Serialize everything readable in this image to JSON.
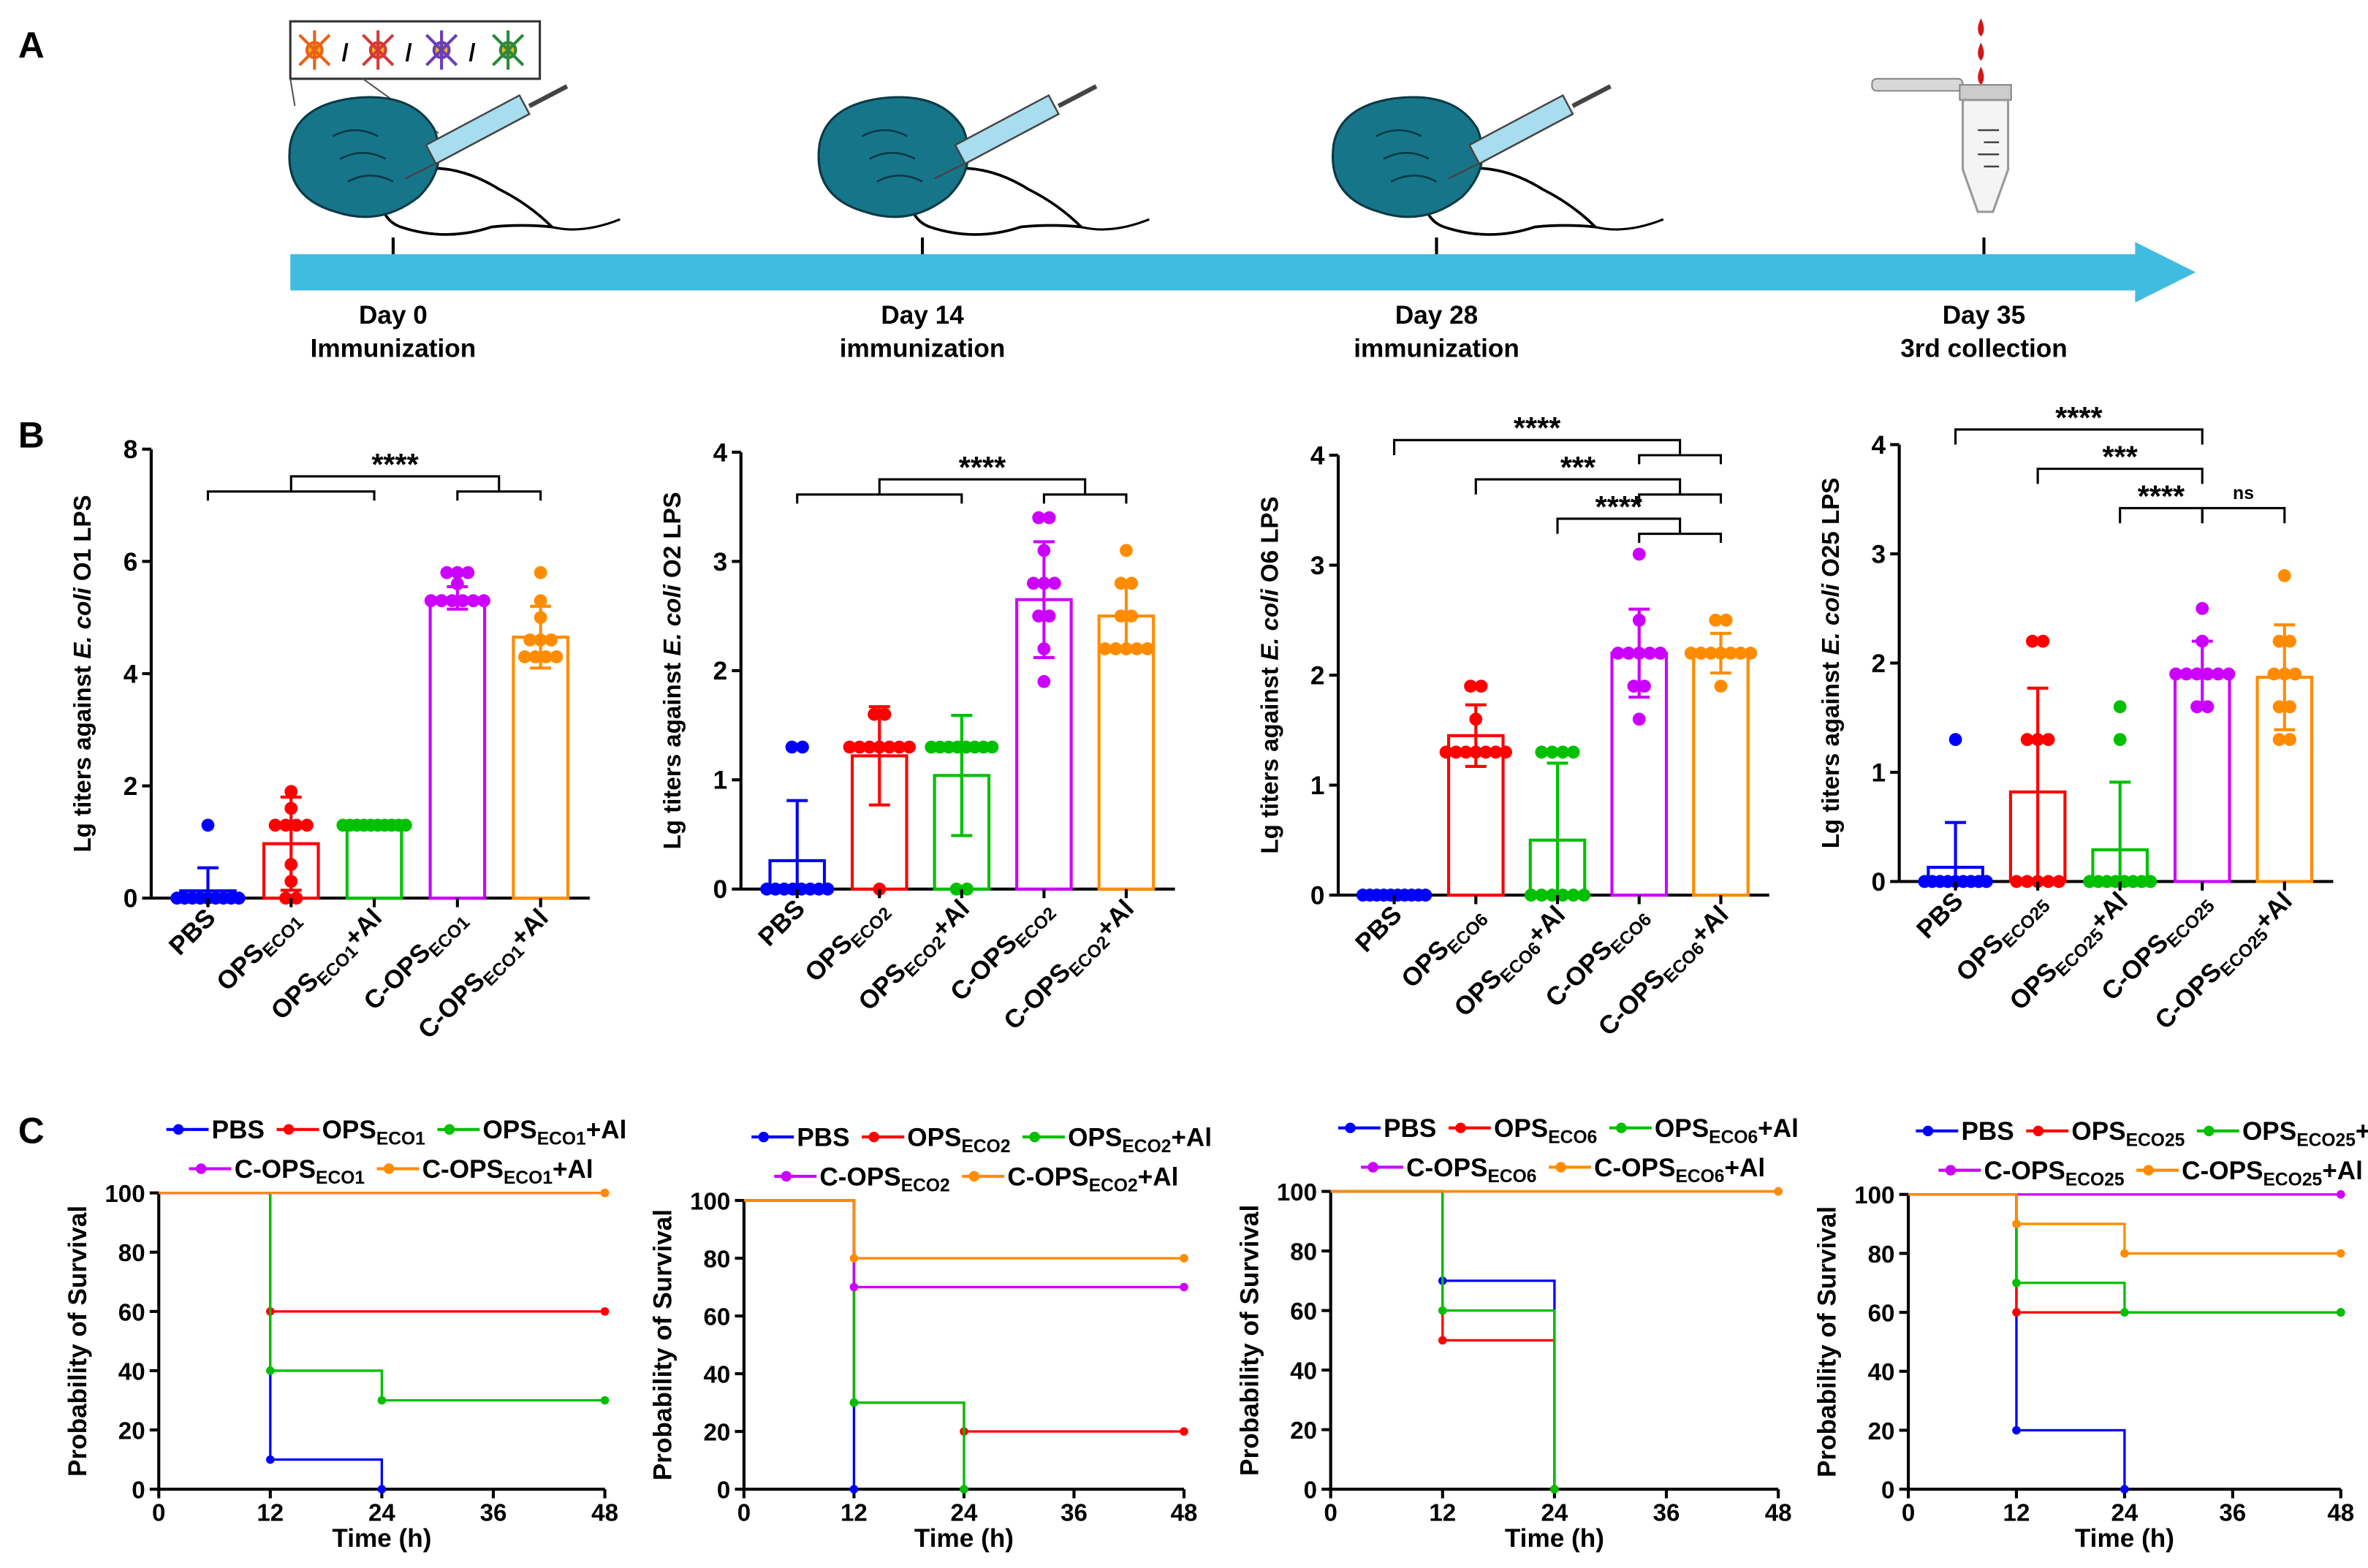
{
  "panel_labels": [
    "A",
    "B",
    "C"
  ],
  "timeline": [
    {
      "day": "Day 0",
      "event": "Immunization"
    },
    {
      "day": "Day 14",
      "event": "immunization"
    },
    {
      "day": "Day 28",
      "event": "immunization"
    },
    {
      "day": "Day 35",
      "event": "3rd collection"
    }
  ],
  "chart_data": [
    {
      "type": "bar",
      "ylabel": [
        "Lg titers against ",
        "E. coli",
        " O1 LPS"
      ],
      "categories": [
        [
          "PBS"
        ],
        [
          "OPS",
          "ECO1"
        ],
        [
          "OPS",
          "ECO1",
          "+Al"
        ],
        [
          "C-OPS",
          "ECO1"
        ],
        [
          "C-OPS",
          "ECO1",
          "+Al"
        ]
      ],
      "colors": [
        "#0000ff",
        "#ff0000",
        "#00c000",
        "#cc00ff",
        "#ff8c00"
      ],
      "values": [
        0.13,
        0.97,
        1.3,
        5.35,
        4.65
      ],
      "errors": [
        0.41,
        0.83,
        0,
        0.2,
        0.55
      ],
      "points": [
        [
          1.3,
          0,
          0,
          0,
          0,
          0,
          0,
          0,
          0,
          0
        ],
        [
          1.9,
          1.6,
          1.3,
          1.3,
          1.3,
          1.3,
          0.6,
          0.3,
          0,
          0
        ],
        [
          1.3,
          1.3,
          1.3,
          1.3,
          1.3,
          1.3,
          1.3,
          1.3,
          1.3,
          1.3
        ],
        [
          5.8,
          5.8,
          5.8,
          5.6,
          5.3,
          5.3,
          5.3,
          5.3,
          5.3,
          5.3
        ],
        [
          5.8,
          5.3,
          5.0,
          4.6,
          4.6,
          4.6,
          4.3,
          4.3,
          4.3,
          4.3
        ]
      ],
      "ylim": [
        0,
        8
      ],
      "yticks": [
        0,
        2,
        4,
        6,
        8
      ],
      "significance": [
        {
          "label": "****",
          "groups": [
            [
              0,
              1,
              2
            ],
            [
              3,
              4
            ]
          ]
        }
      ]
    },
    {
      "type": "bar",
      "ylabel": [
        "Lg titers against ",
        "E. coli",
        " O2 LPS"
      ],
      "categories": [
        [
          "PBS"
        ],
        [
          "OPS",
          "ECO2"
        ],
        [
          "OPS",
          "ECO2",
          "+Al"
        ],
        [
          "C-OPS",
          "ECO2"
        ],
        [
          "C-OPS",
          "ECO2",
          "+Al"
        ]
      ],
      "colors": [
        "#0000ff",
        "#ff0000",
        "#00c000",
        "#cc00ff",
        "#ff8c00"
      ],
      "values": [
        0.26,
        1.22,
        1.04,
        2.65,
        2.5
      ],
      "errors": [
        0.55,
        0.45,
        0.55,
        0.53,
        0.3
      ],
      "points": [
        [
          1.3,
          1.3,
          0,
          0,
          0,
          0,
          0,
          0,
          0,
          0
        ],
        [
          1.6,
          1.6,
          1.3,
          1.3,
          1.3,
          1.3,
          1.3,
          1.3,
          1.3,
          0
        ],
        [
          1.3,
          1.3,
          1.3,
          1.3,
          1.3,
          1.3,
          1.3,
          1.3,
          0,
          0
        ],
        [
          3.4,
          3.4,
          3.1,
          2.8,
          2.8,
          2.8,
          2.5,
          2.5,
          2.2,
          1.9
        ],
        [
          3.1,
          2.8,
          2.8,
          2.5,
          2.5,
          2.2,
          2.2,
          2.2,
          2.2,
          2.2
        ]
      ],
      "ylim": [
        0,
        4
      ],
      "yticks": [
        0,
        1,
        2,
        3,
        4
      ],
      "significance": [
        {
          "label": "****",
          "groups": [
            [
              0,
              1,
              2
            ],
            [
              3,
              4
            ]
          ]
        }
      ]
    },
    {
      "type": "bar",
      "ylabel": [
        "Lg titers against ",
        "E. coli",
        " O6 LPS"
      ],
      "categories": [
        [
          "PBS"
        ],
        [
          "OPS",
          "ECO6"
        ],
        [
          "OPS",
          "ECO6",
          "+Al"
        ],
        [
          "C-OPS",
          "ECO6"
        ],
        [
          "C-OPS",
          "ECO6",
          "+Al"
        ]
      ],
      "colors": [
        "#0000ff",
        "#ff0000",
        "#00c000",
        "#cc00ff",
        "#ff8c00"
      ],
      "values": [
        0,
        1.45,
        0.5,
        2.2,
        2.2
      ],
      "errors": [
        0,
        0.28,
        0.7,
        0.4,
        0.18
      ],
      "points": [
        [
          0,
          0,
          0,
          0,
          0,
          0,
          0,
          0,
          0,
          0
        ],
        [
          1.9,
          1.9,
          1.6,
          1.3,
          1.3,
          1.3,
          1.3,
          1.3,
          1.3,
          1.3
        ],
        [
          1.3,
          1.3,
          1.3,
          1.3,
          0,
          0,
          0,
          0,
          0,
          0
        ],
        [
          3.1,
          2.5,
          2.2,
          2.2,
          2.2,
          2.2,
          2.2,
          1.9,
          1.9,
          1.6
        ],
        [
          2.5,
          2.5,
          2.2,
          2.2,
          2.2,
          2.2,
          2.2,
          2.2,
          2.2,
          1.9
        ]
      ],
      "ylim": [
        0,
        4
      ],
      "yticks": [
        0,
        1,
        2,
        3,
        4
      ],
      "significance": [
        {
          "label": "****",
          "groups": [
            [
              0
            ],
            [
              3,
              4
            ]
          ]
        },
        {
          "label": "***",
          "groups": [
            [
              1
            ],
            [
              3,
              4
            ]
          ]
        },
        {
          "label": "****",
          "groups": [
            [
              2
            ],
            [
              3,
              4
            ]
          ]
        }
      ]
    },
    {
      "type": "bar",
      "ylabel": [
        "Lg titers against ",
        "E. coli",
        " O25 LPS"
      ],
      "categories": [
        [
          "PBS"
        ],
        [
          "OPS",
          "ECO25"
        ],
        [
          "OPS",
          "ECO25",
          "+Al"
        ],
        [
          "C-OPS",
          "ECO25"
        ],
        [
          "C-OPS",
          "ECO25",
          "+Al"
        ]
      ],
      "colors": [
        "#0000ff",
        "#ff0000",
        "#00c000",
        "#cc00ff",
        "#ff8c00"
      ],
      "values": [
        0.13,
        0.82,
        0.29,
        1.9,
        1.87
      ],
      "errors": [
        0.41,
        0.95,
        0.62,
        0.3,
        0.48
      ],
      "points": [
        [
          1.3,
          0,
          0,
          0,
          0,
          0,
          0,
          0,
          0,
          0
        ],
        [
          2.2,
          2.2,
          1.3,
          1.3,
          1.3,
          0,
          0,
          0,
          0,
          0
        ],
        [
          1.6,
          1.3,
          0,
          0,
          0,
          0,
          0,
          0,
          0,
          0
        ],
        [
          2.5,
          2.2,
          1.9,
          1.9,
          1.9,
          1.9,
          1.9,
          1.9,
          1.6,
          1.6
        ],
        [
          2.8,
          2.2,
          2.2,
          1.9,
          1.9,
          1.9,
          1.6,
          1.6,
          1.3,
          1.3
        ]
      ],
      "ylim": [
        0,
        4
      ],
      "yticks": [
        0,
        1,
        2,
        3,
        4
      ],
      "significance": [
        {
          "label": "****",
          "groups": [
            [
              0
            ],
            [
              3
            ]
          ]
        },
        {
          "label": "***",
          "groups": [
            [
              1
            ],
            [
              3
            ]
          ]
        },
        {
          "label": "****",
          "groups": [
            [
              2
            ],
            [
              3
            ]
          ]
        },
        {
          "label": "ns",
          "groups": [
            [
              3
            ],
            [
              4
            ]
          ]
        }
      ]
    },
    {
      "type": "line",
      "xlabel": "Time (h)",
      "ylabel": "Probability of Survival",
      "xlim": [
        0,
        48
      ],
      "xticks": [
        0,
        12,
        24,
        36,
        48
      ],
      "ylim": [
        0,
        100
      ],
      "yticks": [
        0,
        20,
        40,
        60,
        80,
        100
      ],
      "series": [
        {
          "name": [
            "PBS"
          ],
          "color": "#0000ff",
          "x": [
            0,
            12,
            24
          ],
          "values": [
            100,
            10,
            0
          ]
        },
        {
          "name": [
            "OPS",
            "ECO1"
          ],
          "color": "#ff0000",
          "x": [
            0,
            12,
            48
          ],
          "values": [
            100,
            60,
            60
          ]
        },
        {
          "name": [
            "OPS",
            "ECO1",
            "+Al"
          ],
          "color": "#00c000",
          "x": [
            0,
            12,
            24,
            48
          ],
          "values": [
            100,
            40,
            30,
            30
          ]
        },
        {
          "name": [
            "C-OPS",
            "ECO1"
          ],
          "color": "#cc00ff",
          "x": [
            0,
            48
          ],
          "values": [
            100,
            100
          ]
        },
        {
          "name": [
            "C-OPS",
            "ECO1",
            "+Al"
          ],
          "color": "#ff8c00",
          "x": [
            0,
            48
          ],
          "values": [
            100,
            100
          ]
        }
      ]
    },
    {
      "type": "line",
      "xlabel": "Time (h)",
      "ylabel": "Probability of Survival",
      "xlim": [
        0,
        48
      ],
      "xticks": [
        0,
        12,
        24,
        36,
        48
      ],
      "ylim": [
        0,
        100
      ],
      "yticks": [
        0,
        20,
        40,
        60,
        80,
        100
      ],
      "series": [
        {
          "name": [
            "PBS"
          ],
          "color": "#0000ff",
          "x": [
            0,
            12
          ],
          "values": [
            100,
            0
          ]
        },
        {
          "name": [
            "OPS",
            "ECO2"
          ],
          "color": "#ff0000",
          "x": [
            0,
            12,
            24,
            48
          ],
          "values": [
            100,
            30,
            20,
            20
          ]
        },
        {
          "name": [
            "OPS",
            "ECO2",
            "+Al"
          ],
          "color": "#00c000",
          "x": [
            0,
            12,
            24
          ],
          "values": [
            100,
            30,
            0
          ]
        },
        {
          "name": [
            "C-OPS",
            "ECO2"
          ],
          "color": "#cc00ff",
          "x": [
            0,
            12,
            48
          ],
          "values": [
            100,
            70,
            70
          ]
        },
        {
          "name": [
            "C-OPS",
            "ECO2",
            "+Al"
          ],
          "color": "#ff8c00",
          "x": [
            0,
            12,
            48
          ],
          "values": [
            100,
            80,
            80
          ]
        }
      ]
    },
    {
      "type": "line",
      "xlabel": "Time (h)",
      "ylabel": "Probability of Survival",
      "xlim": [
        0,
        48
      ],
      "xticks": [
        0,
        12,
        24,
        36,
        48
      ],
      "ylim": [
        0,
        100
      ],
      "yticks": [
        0,
        20,
        40,
        60,
        80,
        100
      ],
      "series": [
        {
          "name": [
            "PBS"
          ],
          "color": "#0000ff",
          "x": [
            0,
            12,
            24
          ],
          "values": [
            100,
            70,
            0
          ]
        },
        {
          "name": [
            "OPS",
            "ECO6"
          ],
          "color": "#ff0000",
          "x": [
            0,
            12,
            24
          ],
          "values": [
            100,
            50,
            0
          ]
        },
        {
          "name": [
            "OPS",
            "ECO6",
            "+Al"
          ],
          "color": "#00c000",
          "x": [
            0,
            12,
            24
          ],
          "values": [
            100,
            60,
            0
          ]
        },
        {
          "name": [
            "C-OPS",
            "ECO6"
          ],
          "color": "#cc00ff",
          "x": [
            0,
            48
          ],
          "values": [
            100,
            100
          ]
        },
        {
          "name": [
            "C-OPS",
            "ECO6",
            "+Al"
          ],
          "color": "#ff8c00",
          "x": [
            0,
            48
          ],
          "values": [
            100,
            100
          ]
        }
      ]
    },
    {
      "type": "line",
      "xlabel": "Time (h)",
      "ylabel": "Probability of Survival",
      "xlim": [
        0,
        48
      ],
      "xticks": [
        0,
        12,
        24,
        36,
        48
      ],
      "ylim": [
        0,
        100
      ],
      "yticks": [
        0,
        20,
        40,
        60,
        80,
        100
      ],
      "series": [
        {
          "name": [
            "PBS"
          ],
          "color": "#0000ff",
          "x": [
            0,
            12,
            24
          ],
          "values": [
            100,
            20,
            0
          ]
        },
        {
          "name": [
            "OPS",
            "ECO25"
          ],
          "color": "#ff0000",
          "x": [
            0,
            12,
            48
          ],
          "values": [
            100,
            60,
            60
          ]
        },
        {
          "name": [
            "OPS",
            "ECO25",
            "+Al"
          ],
          "color": "#00c000",
          "x": [
            0,
            12,
            24,
            48
          ],
          "values": [
            100,
            70,
            60,
            60
          ]
        },
        {
          "name": [
            "C-OPS",
            "ECO25"
          ],
          "color": "#cc00ff",
          "x": [
            0,
            48
          ],
          "values": [
            100,
            100
          ]
        },
        {
          "name": [
            "C-OPS",
            "ECO25",
            "+Al"
          ],
          "color": "#ff8c00",
          "x": [
            0,
            12,
            24,
            48
          ],
          "values": [
            100,
            90,
            80,
            80
          ]
        }
      ]
    }
  ]
}
